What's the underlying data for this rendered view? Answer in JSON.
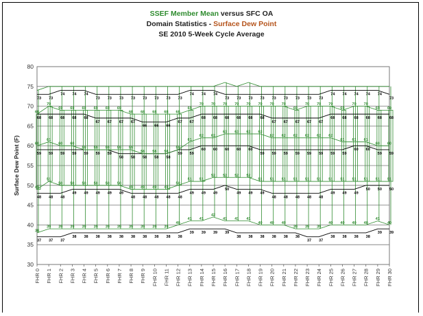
{
  "chart_data": {
    "type": "box",
    "title": {
      "line1_part1": "SSEF Member Mean",
      "line1_part2": " versus SFC OA",
      "line2_part1": "Domain Statistics - ",
      "line2_part2": "Surface Dew Point",
      "line3": "SE 2010 5-Week Cycle Average"
    },
    "ylabel": "Surface Dew Point (F)",
    "xlabel": "",
    "ylim": [
      30,
      80
    ],
    "yticks": [
      30,
      35,
      40,
      45,
      50,
      55,
      60,
      65,
      70,
      75,
      80
    ],
    "grid": true,
    "categories": [
      "FHR 0",
      "FHR 1",
      "FHR 2",
      "FHR 3",
      "FHR 4",
      "FHR 5",
      "FHR 6",
      "FHR 7",
      "FHR 8",
      "FHR 9",
      "FHR 10",
      "FHR 11",
      "FHR 12",
      "FHR 13",
      "FHR 14",
      "FHR 15",
      "FHR 16",
      "FHR 17",
      "FHR 18",
      "FHR 19",
      "FHR 20",
      "FHR 21",
      "FHR 22",
      "FHR 23",
      "FHR 24",
      "FHR 25",
      "FHR 26",
      "FHR 27",
      "FHR 28",
      "FHR 29",
      "FHR 30"
    ],
    "series": [
      {
        "name": "SSEF Member Mean",
        "color": "#2e8b2e",
        "max": [
          74,
          75,
          75,
          75,
          75,
          75,
          75,
          75,
          75,
          75,
          75,
          75,
          75,
          75,
          75,
          75,
          76,
          75,
          76,
          75,
          75,
          75,
          75,
          75,
          75,
          75,
          75,
          75,
          75,
          75,
          75
        ],
        "q3": [
          68,
          70,
          69,
          69,
          69,
          69,
          69,
          69,
          68,
          68,
          68,
          68,
          68,
          69,
          70,
          70,
          70,
          70,
          70,
          70,
          70,
          70,
          69,
          70,
          70,
          70,
          69,
          70,
          70,
          69,
          69
        ],
        "median": [
          60,
          61,
          60,
          60,
          59,
          59,
          59,
          59,
          59,
          58,
          58,
          58,
          59,
          61,
          62,
          62,
          63,
          63,
          63,
          63,
          62,
          62,
          62,
          62,
          62,
          62,
          61,
          61,
          61,
          60,
          60
        ],
        "q1": [
          49,
          51,
          50,
          50,
          50,
          50,
          50,
          50,
          49,
          49,
          49,
          49,
          50,
          51,
          51,
          52,
          52,
          52,
          52,
          51,
          51,
          51,
          51,
          51,
          51,
          51,
          51,
          51,
          51,
          51,
          51
        ],
        "min": [
          38,
          39,
          39,
          39,
          39,
          39,
          39,
          39,
          39,
          39,
          39,
          39,
          40,
          41,
          41,
          42,
          41,
          41,
          41,
          40,
          40,
          40,
          39,
          39,
          39,
          40,
          40,
          40,
          40,
          41,
          40
        ],
        "q3_labels": [
          "68",
          "70",
          "69",
          "69",
          "69",
          "69",
          "69",
          "69",
          "68",
          "68",
          "68",
          "68",
          "68",
          "69",
          "70",
          "70",
          "70",
          "70",
          "70",
          "70",
          "70",
          "70",
          "69",
          "70",
          "70",
          "70",
          "69",
          "70",
          "70",
          "69",
          "69"
        ],
        "median_labels": [
          "60",
          "61",
          "60",
          "60",
          "59",
          "59",
          "59",
          "59",
          "59",
          "58",
          "58",
          "58",
          "59",
          "61",
          "62",
          "62",
          "63",
          "63",
          "63",
          "63",
          "62",
          "62",
          "62",
          "62",
          "62",
          "62",
          "61",
          "61",
          "61",
          "60",
          "60"
        ],
        "q1_labels": [
          "49",
          "51",
          "50",
          "50",
          "50",
          "50",
          "50",
          "50",
          "49",
          "49",
          "49",
          "49",
          "50",
          "51",
          "51",
          "52",
          "52",
          "52",
          "52",
          "51",
          "51",
          "51",
          "51",
          "51",
          "51",
          "51",
          "51",
          "51",
          "51",
          "51",
          "51"
        ],
        "min_labels": [
          "38",
          "39",
          "39",
          "39",
          "39",
          "39",
          "39",
          "39",
          "39",
          "39",
          "39",
          "39",
          "40",
          "41",
          "41",
          "42",
          "41",
          "41",
          "41",
          "40",
          "40",
          "40",
          "39",
          "39",
          "39",
          "40",
          "40",
          "40",
          "40",
          "41",
          "40"
        ]
      },
      {
        "name": "SFC OA",
        "color": "#000000",
        "max": [
          73,
          73,
          74,
          74,
          74,
          73,
          73,
          73,
          73,
          73,
          73,
          73,
          73,
          74,
          74,
          74,
          73,
          73,
          73,
          73,
          73,
          73,
          73,
          73,
          73,
          74,
          74,
          74,
          74,
          74,
          73
        ],
        "q3": [
          68,
          68,
          68,
          68,
          68,
          67,
          67,
          67,
          67,
          66,
          66,
          66,
          67,
          67,
          68,
          68,
          68,
          68,
          68,
          68,
          67,
          67,
          67,
          67,
          67,
          68,
          68,
          68,
          68,
          68,
          68
        ],
        "median": [
          59,
          59,
          59,
          59,
          59,
          59,
          59,
          58,
          58,
          58,
          58,
          58,
          59,
          59,
          60,
          60,
          60,
          60,
          60,
          59,
          59,
          59,
          59,
          59,
          59,
          59,
          59,
          60,
          60,
          59,
          59
        ],
        "q1": [
          48,
          48,
          48,
          49,
          49,
          49,
          49,
          49,
          48,
          48,
          48,
          48,
          48,
          49,
          49,
          49,
          50,
          49,
          49,
          49,
          48,
          48,
          48,
          48,
          48,
          49,
          49,
          49,
          50,
          50,
          50
        ],
        "min": [
          37,
          37,
          37,
          38,
          38,
          38,
          38,
          38,
          38,
          38,
          38,
          38,
          38,
          39,
          39,
          39,
          39,
          38,
          38,
          38,
          38,
          38,
          38,
          37,
          37,
          38,
          38,
          38,
          38,
          39,
          39
        ],
        "max_labels": [
          "73",
          "73",
          "74",
          "74",
          "74",
          "73",
          "73",
          "73",
          "73",
          "73",
          "73",
          "73",
          "73",
          "74",
          "74",
          "74",
          "73",
          "73",
          "73",
          "73",
          "73",
          "73",
          "73",
          "73",
          "73",
          "74",
          "74",
          "74",
          "74",
          "74",
          "73"
        ],
        "q3_labels": [
          "68",
          "68",
          "68",
          "68",
          "68",
          "67",
          "67",
          "67",
          "67",
          "66",
          "66",
          "66",
          "67",
          "67",
          "68",
          "68",
          "68",
          "68",
          "68",
          "68",
          "67",
          "67",
          "67",
          "67",
          "67",
          "68",
          "68",
          "68",
          "68",
          "68",
          "68"
        ],
        "median_labels": [
          "59",
          "59",
          "59",
          "59",
          "59",
          "59",
          "59",
          "58",
          "58",
          "58",
          "58",
          "58",
          "59",
          "59",
          "60",
          "60",
          "60",
          "60",
          "60",
          "59",
          "59",
          "59",
          "59",
          "59",
          "59",
          "59",
          "59",
          "60",
          "60",
          "59",
          "59"
        ],
        "q1_labels": [
          "48",
          "48",
          "48",
          "49",
          "49",
          "49",
          "49",
          "49",
          "48",
          "48",
          "48",
          "48",
          "48",
          "49",
          "49",
          "49",
          "50",
          "49",
          "49",
          "49",
          "48",
          "48",
          "48",
          "48",
          "48",
          "49",
          "49",
          "49",
          "50",
          "50",
          "50"
        ],
        "min_labels": [
          "37",
          "37",
          "37",
          "38",
          "38",
          "38",
          "38",
          "38",
          "38",
          "38",
          "38",
          "38",
          "38",
          "39",
          "39",
          "39",
          "39",
          "38",
          "38",
          "38",
          "38",
          "38",
          "38",
          "37",
          "37",
          "38",
          "38",
          "38",
          "38",
          "39",
          "39"
        ]
      }
    ]
  }
}
